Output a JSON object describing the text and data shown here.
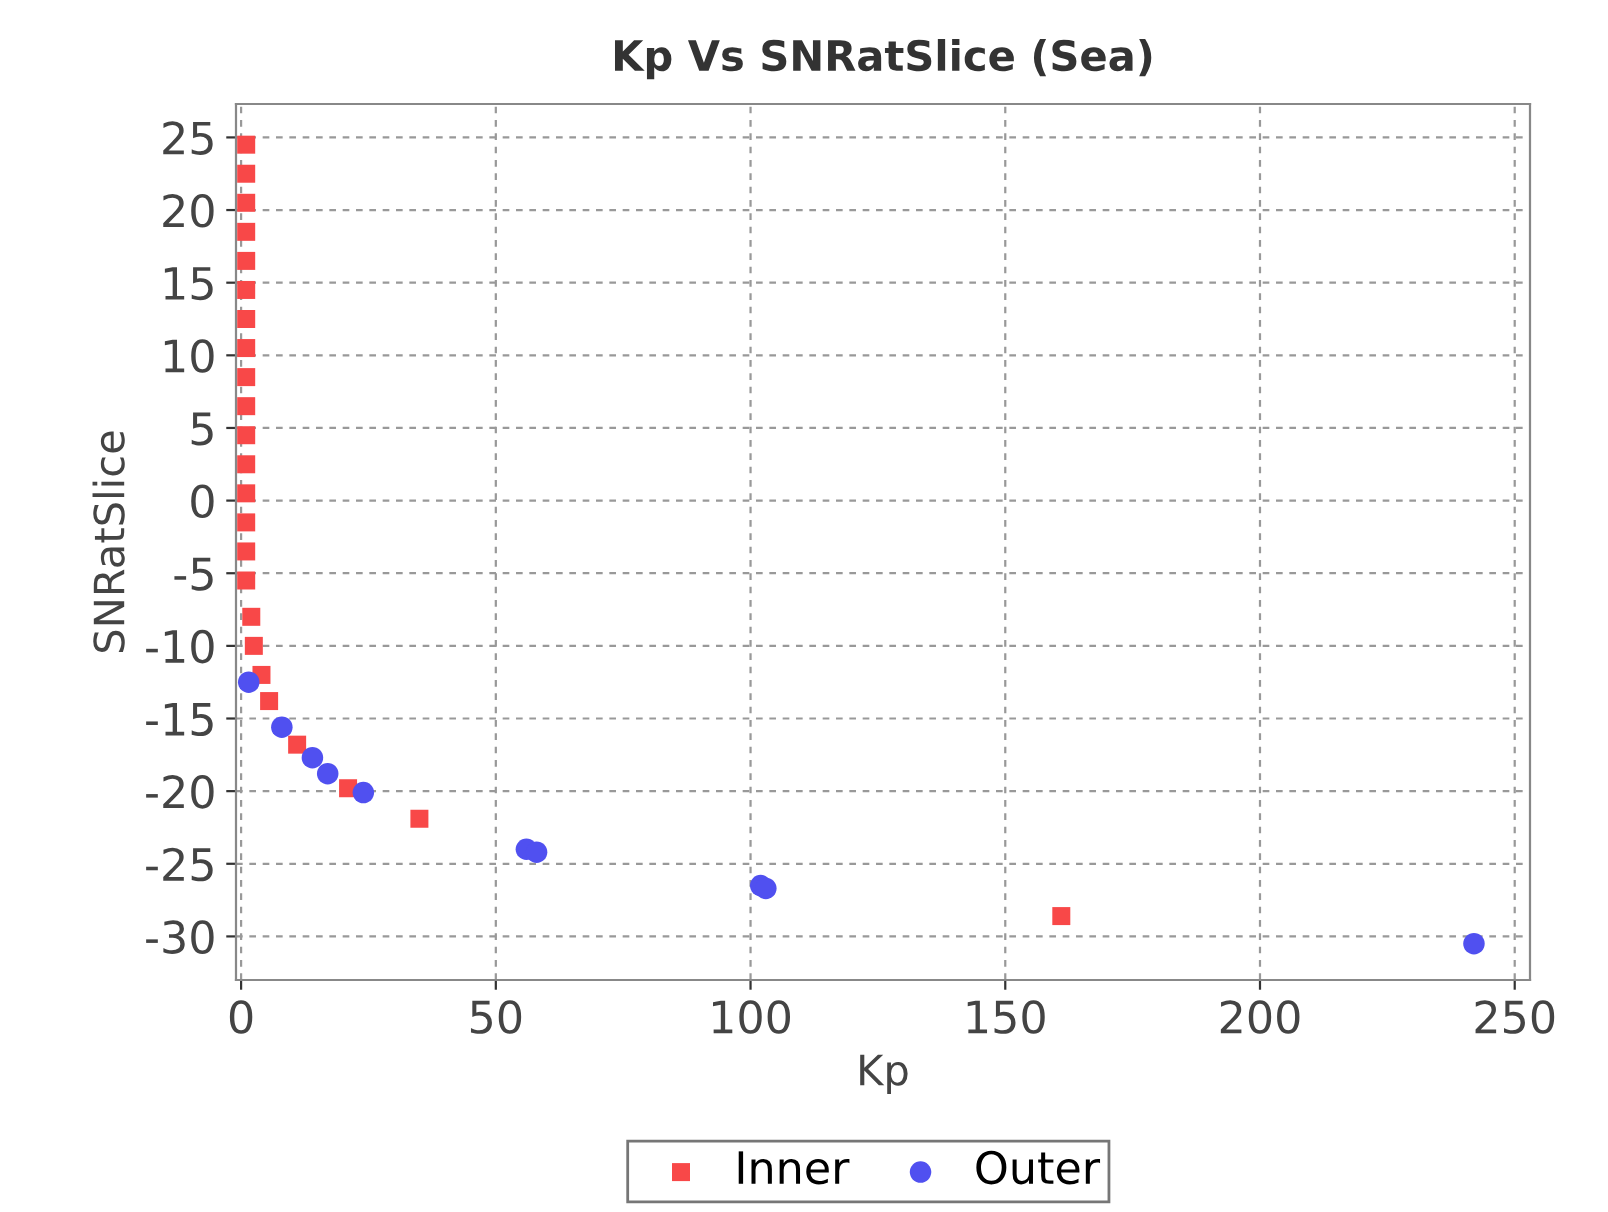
{
  "chart_data": {
    "type": "scatter",
    "title": "Kp Vs SNRatSlice (Sea)",
    "xlabel": "Kp",
    "ylabel": "SNRatSlice",
    "xlim": [
      -1,
      253
    ],
    "ylim": [
      -33,
      27.3
    ],
    "xticks": [
      0,
      50,
      100,
      150,
      200,
      250
    ],
    "yticks": [
      -30,
      -25,
      -20,
      -15,
      -10,
      -5,
      0,
      5,
      10,
      15,
      20,
      25
    ],
    "grid": true,
    "legend": "bottom",
    "series": [
      {
        "name": "Inner",
        "color": "#f84848",
        "marker": "square",
        "x": [
          1,
          1,
          1,
          1,
          1,
          1,
          1,
          1,
          1,
          1,
          1,
          1,
          1,
          1,
          1,
          1,
          2,
          2.5,
          4,
          5.5,
          11,
          21,
          35,
          161
        ],
        "values": [
          24.5,
          22.5,
          20.5,
          18.5,
          16.5,
          14.5,
          12.5,
          10.5,
          8.5,
          6.5,
          4.5,
          2.5,
          0.5,
          -1.5,
          -3.5,
          -5.5,
          -8,
          -10,
          -12,
          -13.8,
          -16.8,
          -19.8,
          -21.9,
          -28.6
        ]
      },
      {
        "name": "Outer",
        "color": "#5050f0",
        "marker": "circle",
        "x": [
          1.5,
          8,
          14,
          17,
          24,
          56,
          58,
          102,
          103,
          242
        ],
        "values": [
          -12.5,
          -15.6,
          -17.7,
          -18.8,
          -20.1,
          -24,
          -24.2,
          -26.5,
          -26.7,
          -30.5
        ]
      }
    ]
  }
}
